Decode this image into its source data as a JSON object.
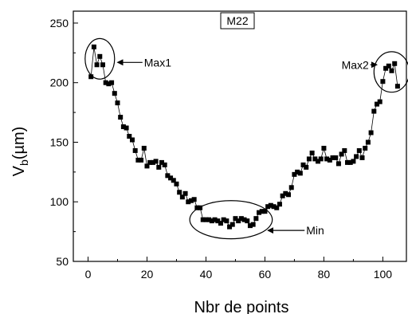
{
  "chart_data": {
    "type": "scatter",
    "title": "M22",
    "xlabel": "Nbr de points",
    "ylabel": {
      "main": "V",
      "sub": "b",
      "rest": "(µm)"
    },
    "xlim": [
      -5,
      108
    ],
    "ylim": [
      50,
      260
    ],
    "x_ticks": [
      0,
      20,
      40,
      60,
      80,
      100
    ],
    "y_ticks": [
      50,
      100,
      150,
      200,
      250
    ],
    "x_tick_labels": [
      "0",
      "20",
      "40",
      "60",
      "80",
      "100"
    ],
    "y_tick_labels": [
      "50",
      "100",
      "150",
      "200",
      "250"
    ],
    "marker": "square",
    "connected": true,
    "series": [
      {
        "x": [
          1,
          2,
          3,
          4,
          5,
          6,
          7,
          8,
          9,
          10,
          11,
          12,
          13,
          14,
          15,
          16,
          17,
          18,
          19,
          20,
          21,
          22,
          23,
          24,
          25,
          26,
          27,
          28,
          29,
          30,
          31,
          32,
          33,
          34,
          35,
          36,
          37,
          38,
          39,
          40,
          41,
          42,
          43,
          44,
          45,
          46,
          47,
          48,
          49,
          50,
          51,
          52,
          53,
          54,
          55,
          56,
          57,
          58,
          59,
          60,
          61,
          62,
          63,
          64,
          65,
          66,
          67,
          68,
          69,
          70,
          71,
          72,
          73,
          74,
          75,
          76,
          77,
          78,
          79,
          80,
          81,
          82,
          83,
          84,
          85,
          86,
          87,
          88,
          89,
          90,
          91,
          92,
          93,
          94,
          95,
          96,
          97,
          98,
          99,
          100,
          101,
          102,
          103,
          104,
          105
        ],
        "y": [
          205,
          230,
          215,
          222,
          215,
          200,
          199,
          200,
          191,
          183,
          171,
          163,
          162,
          155,
          152,
          143,
          135,
          135,
          145,
          130,
          133,
          133,
          134,
          129,
          133,
          131,
          122,
          120,
          118,
          115,
          108,
          104,
          107,
          100,
          101,
          102,
          95,
          95,
          85,
          85,
          85,
          84,
          85,
          84,
          82,
          85,
          84,
          79,
          81,
          86,
          84,
          86,
          85,
          84,
          80,
          81,
          86,
          91,
          92,
          92,
          96,
          97,
          96,
          95,
          98,
          105,
          107,
          106,
          112,
          123,
          125,
          124,
          131,
          129,
          136,
          141,
          136,
          134,
          136,
          145,
          136,
          135,
          137,
          137,
          132,
          140,
          143,
          133,
          133,
          134,
          138,
          143,
          137,
          145,
          150,
          158,
          176,
          182,
          184,
          201,
          212,
          214,
          210,
          216,
          197
        ]
      }
    ],
    "annotations": [
      {
        "label": "Max1",
        "ellipse": {
          "cx": 4,
          "cy": 220,
          "rx": 5,
          "ry": 17
        },
        "arrow_to": {
          "x": 10,
          "y": 217
        },
        "text_at": {
          "x": 19,
          "y": 217
        }
      },
      {
        "label": "Max2",
        "ellipse": {
          "cx": 103,
          "cy": 209,
          "rx": 6,
          "ry": 17
        },
        "arrow_to": {
          "x": 98,
          "y": 215
        },
        "text_at": {
          "x": 86,
          "y": 215
        }
      },
      {
        "label": "Min",
        "ellipse": {
          "cx": 48.5,
          "cy": 85,
          "rx": 14,
          "ry": 16
        },
        "arrow_to": {
          "x": 61,
          "y": 76
        },
        "text_at": {
          "x": 74,
          "y": 76
        }
      }
    ]
  }
}
